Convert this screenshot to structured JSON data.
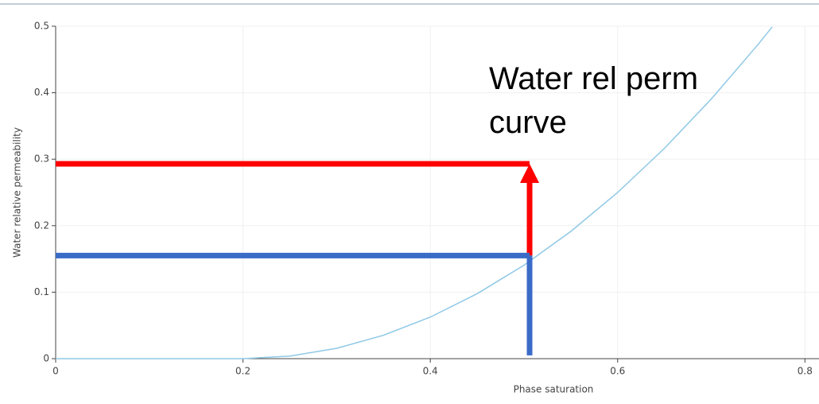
{
  "chart_data": {
    "type": "line",
    "xlabel": "Phase saturation",
    "ylabel": "Water relative permeability",
    "annotation": [
      "Water rel perm",
      "curve"
    ],
    "xlim": [
      0,
      0.815
    ],
    "ylim": [
      0,
      0.5
    ],
    "xticks": [
      0,
      0.2,
      0.4,
      0.6,
      0.8
    ],
    "yticks": [
      0,
      0.1,
      0.2,
      0.3,
      0.4,
      0.5
    ],
    "grid": true,
    "series": [
      {
        "color": "#8fc8e6",
        "x": [
          0,
          0.1,
          0.2,
          0.25,
          0.3,
          0.35,
          0.4,
          0.45,
          0.5,
          0.55,
          0.6,
          0.65,
          0.7,
          0.75,
          0.765
        ],
        "values": [
          0,
          0,
          0,
          0.0039,
          0.0156,
          0.0352,
          0.0625,
          0.0977,
          0.1406,
          0.1914,
          0.25,
          0.3164,
          0.3906,
          0.4727,
          0.4989
        ]
      }
    ],
    "shapes": [
      {
        "color": "#ff0000",
        "x": [
          0,
          0.506
        ],
        "y": [
          0.293,
          0.293
        ],
        "arrow": false
      },
      {
        "color": "#ff0000",
        "x": [
          0.506,
          0.506
        ],
        "y": [
          0.155,
          0.293
        ],
        "arrow": true
      },
      {
        "color": "#3a6bc7",
        "x": [
          0,
          0.506
        ],
        "y": [
          0.155,
          0.155
        ],
        "arrow": false
      },
      {
        "color": "#3a6bc7",
        "x": [
          0.506,
          0.506
        ],
        "y": [
          0.155,
          0.005
        ],
        "arrow": false
      }
    ]
  }
}
